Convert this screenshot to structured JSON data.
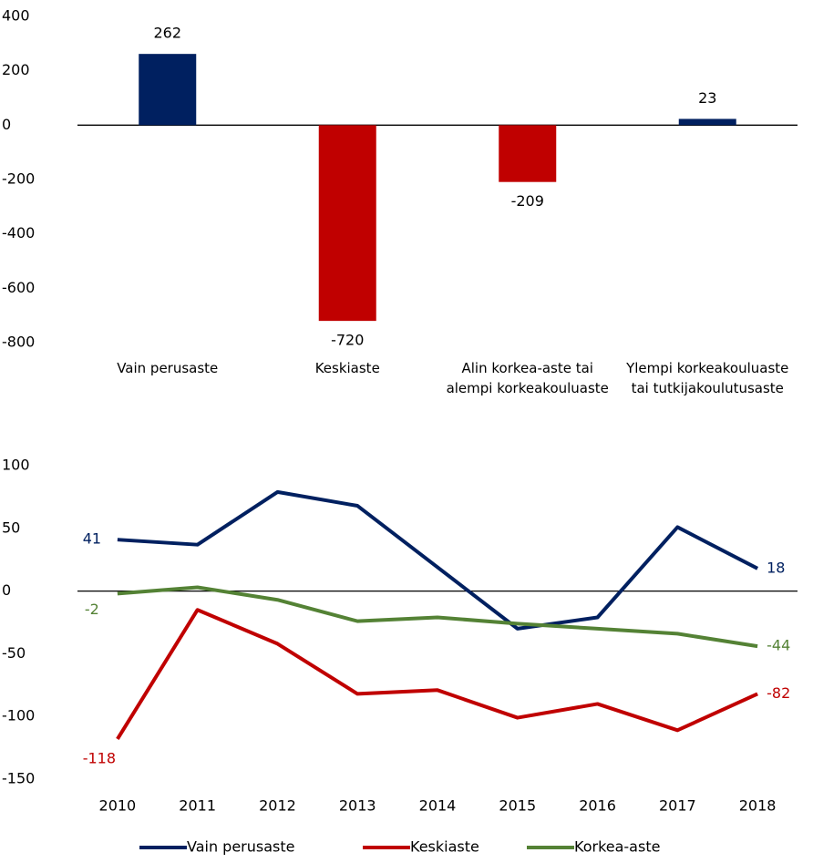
{
  "chart_data": [
    {
      "type": "bar",
      "categories": [
        "Vain perusaste",
        "Keskiaste",
        "Alin korkea-aste tai alempi korkeakouluaste",
        "Ylempi korkeakouluaste tai tutkijakoulutusaste"
      ],
      "values": [
        262,
        -720,
        -209,
        23
      ],
      "colors": [
        "#002060",
        "#c00000",
        "#c00000",
        "#002060"
      ],
      "ylim": [
        -800,
        400
      ],
      "yticks": [
        400,
        200,
        0,
        -200,
        -400,
        -600,
        -800
      ],
      "grid": false
    },
    {
      "type": "line",
      "categories": [
        "2010",
        "2011",
        "2012",
        "2013",
        "2014",
        "2015",
        "2016",
        "2017",
        "2018"
      ],
      "series": [
        {
          "name": "Vain perusaste",
          "color": "#002060",
          "values": [
            41,
            37,
            79,
            68,
            19,
            -30,
            -21,
            51,
            18
          ]
        },
        {
          "name": "Keskiaste",
          "color": "#c00000",
          "values": [
            -118,
            -15,
            -42,
            -82,
            -79,
            -101,
            -90,
            -111,
            -82
          ]
        },
        {
          "name": "Korkea-aste",
          "color": "#548235",
          "values": [
            -2,
            3,
            -7,
            -24,
            -21,
            -26,
            -30,
            -34,
            -44
          ]
        }
      ],
      "ylim": [
        -150,
        100
      ],
      "yticks": [
        100,
        50,
        0,
        -50,
        -100,
        -150
      ],
      "grid": false,
      "legend": "bottom"
    }
  ]
}
